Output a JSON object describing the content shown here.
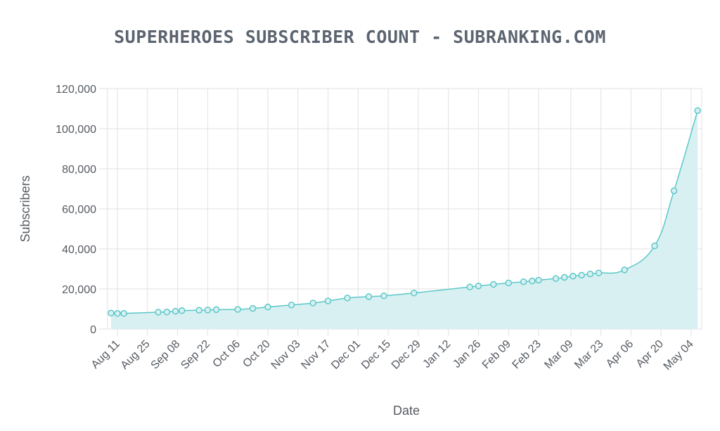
{
  "chart_data": {
    "type": "area",
    "title": "SUPERHEROES SUBSCRIBER COUNT - SUBRANKING.COM",
    "xlabel": "Date",
    "ylabel": "Subscribers",
    "ylim": [
      0,
      120000
    ],
    "y_ticks": [
      0,
      20000,
      40000,
      60000,
      80000,
      100000,
      120000
    ],
    "y_tick_labels": [
      "0",
      "20,000",
      "40,000",
      "60,000",
      "80,000",
      "100,000",
      "120,000"
    ],
    "x_tick_labels": [
      "Aug 11",
      "Aug 25",
      "Sep 08",
      "Sep 22",
      "Oct 06",
      "Oct 20",
      "Nov 03",
      "Nov 17",
      "Dec 01",
      "Dec 15",
      "Dec 29",
      "Jan 12",
      "Jan 26",
      "Feb 09",
      "Feb 23",
      "Mar 09",
      "Mar 23",
      "Apr 06",
      "Apr 20",
      "May 04"
    ],
    "grid": true,
    "legend": "none",
    "line_color": "#5cc8c8",
    "fill_color": "#d9f0f2",
    "series": [
      {
        "x": [
          "Aug 08",
          "Aug 11",
          "Aug 14",
          "Aug 30",
          "Sep 03",
          "Sep 07",
          "Sep 10",
          "Sep 18",
          "Sep 22",
          "Sep 26",
          "Oct 06",
          "Oct 13",
          "Oct 20",
          "Oct 31",
          "Nov 10",
          "Nov 17",
          "Nov 26",
          "Dec 06",
          "Dec 13",
          "Dec 27",
          "Jan 22",
          "Jan 26",
          "Feb 02",
          "Feb 09",
          "Feb 16",
          "Feb 20",
          "Feb 23",
          "Mar 02",
          "Mar 06",
          "Mar 10",
          "Mar 14",
          "Mar 18",
          "Mar 22",
          "Apr 03",
          "Apr 17",
          "Apr 26",
          "May 07"
        ],
        "values": [
          8000,
          7800,
          7800,
          8400,
          8500,
          8900,
          9200,
          9400,
          9500,
          9700,
          9800,
          10300,
          11000,
          12000,
          13000,
          14000,
          15500,
          16200,
          16600,
          18000,
          21000,
          21500,
          22300,
          23000,
          23600,
          24000,
          24400,
          25200,
          25800,
          26400,
          26900,
          27500,
          28000,
          29500,
          41500,
          69000,
          109000
        ]
      }
    ]
  }
}
